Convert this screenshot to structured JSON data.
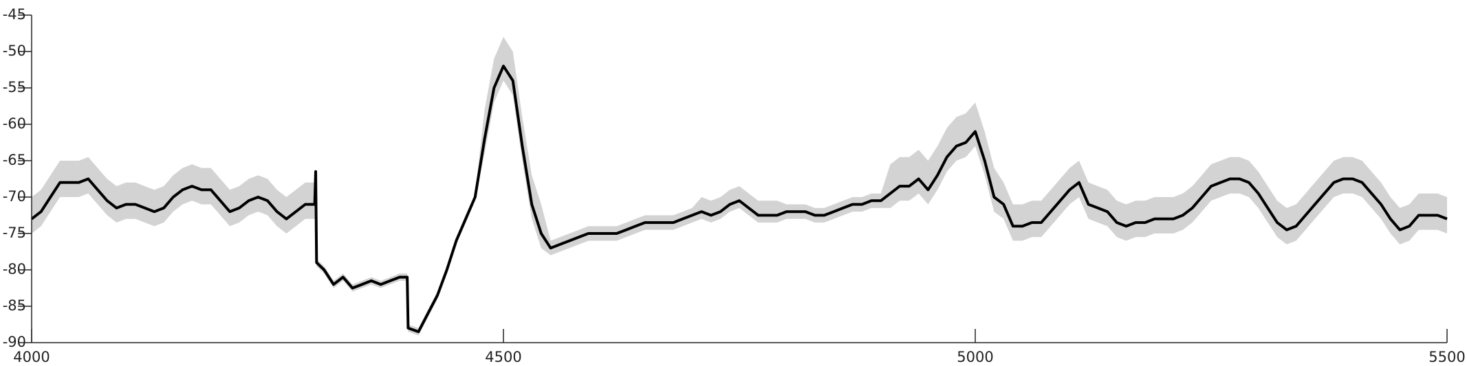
{
  "chart_data": {
    "type": "line",
    "x": [
      4000,
      4010,
      4020,
      4030,
      4040,
      4050,
      4060,
      4070,
      4080,
      4090,
      4100,
      4110,
      4120,
      4130,
      4140,
      4150,
      4160,
      4170,
      4180,
      4190,
      4200,
      4210,
      4220,
      4230,
      4240,
      4250,
      4260,
      4270,
      4280,
      4290,
      4300,
      4301,
      4302,
      4310,
      4320,
      4330,
      4340,
      4350,
      4360,
      4370,
      4380,
      4390,
      4398,
      4399,
      4410,
      4420,
      4430,
      4440,
      4450,
      4460,
      4470,
      4480,
      4490,
      4500,
      4510,
      4520,
      4530,
      4540,
      4550,
      4560,
      4570,
      4580,
      4590,
      4600,
      4610,
      4620,
      4630,
      4640,
      4650,
      4660,
      4670,
      4680,
      4690,
      4700,
      4710,
      4720,
      4730,
      4740,
      4750,
      4760,
      4770,
      4780,
      4790,
      4800,
      4810,
      4820,
      4830,
      4840,
      4850,
      4860,
      4870,
      4880,
      4890,
      4900,
      4910,
      4920,
      4930,
      4940,
      4950,
      4960,
      4970,
      4980,
      4990,
      5000,
      5010,
      5020,
      5030,
      5040,
      5050,
      5060,
      5070,
      5080,
      5090,
      5100,
      5110,
      5120,
      5130,
      5140,
      5150,
      5160,
      5170,
      5180,
      5190,
      5200,
      5210,
      5220,
      5230,
      5240,
      5250,
      5260,
      5270,
      5280,
      5290,
      5300,
      5310,
      5320,
      5330,
      5340,
      5350,
      5360,
      5370,
      5380,
      5390,
      5400,
      5410,
      5420,
      5430,
      5440,
      5450,
      5460,
      5470,
      5480,
      5490,
      5500
    ],
    "band": {
      "color": "#d3d3d3",
      "upper": [
        -70,
        -69,
        -67,
        -65,
        -65,
        -65,
        -64.5,
        -66,
        -67.5,
        -68.5,
        -68,
        -68,
        -68.5,
        -69,
        -68.5,
        -67,
        -66,
        -65.5,
        -66,
        -66,
        -67.5,
        -69,
        -68.5,
        -67.5,
        -67,
        -67.5,
        -69,
        -70,
        -69,
        -68,
        -68,
        -66,
        -78.5,
        -79.5,
        -81.5,
        -80.5,
        -82,
        -81.5,
        -81,
        -81.5,
        -81,
        -80.5,
        -80.5,
        -87.5,
        -88,
        -85.5,
        -83,
        -79.5,
        -75.5,
        -72.5,
        -69.5,
        -58,
        -51,
        -48,
        -50,
        -59,
        -67,
        -71,
        -76,
        -75.5,
        -75,
        -74.5,
        -74,
        -74,
        -74,
        -74,
        -73.5,
        -73,
        -72.5,
        -72.5,
        -72.5,
        -72.5,
        -72,
        -71.5,
        -70,
        -70.5,
        -70,
        -69,
        -68.5,
        -69.5,
        -70.5,
        -70.5,
        -70.5,
        -71,
        -71,
        -71,
        -71.5,
        -71.5,
        -71,
        -70.5,
        -70,
        -70,
        -69.5,
        -69.5,
        -65.5,
        -64.5,
        -64.5,
        -63.5,
        -65,
        -63,
        -60.5,
        -59,
        -58.5,
        -57,
        -61,
        -66,
        -68,
        -71,
        -71,
        -70.5,
        -70.5,
        -69,
        -67.5,
        -66,
        -65,
        -68,
        -68.5,
        -69,
        -70.5,
        -71,
        -70.5,
        -70.5,
        -70,
        -70,
        -70,
        -69.5,
        -68.5,
        -67,
        -65.5,
        -65,
        -64.5,
        -64.5,
        -65,
        -66.5,
        -68.5,
        -70.5,
        -71.5,
        -71,
        -69.5,
        -68,
        -66.5,
        -65,
        -64.5,
        -64.5,
        -65,
        -66.5,
        -68,
        -70,
        -71.5,
        -71,
        -69.5,
        -69.5,
        -69.5,
        -70
      ],
      "lower": [
        -75,
        -74,
        -72,
        -70,
        -70,
        -70,
        -69.5,
        -71,
        -72.5,
        -73.5,
        -73,
        -73,
        -73.5,
        -74,
        -73.5,
        -72,
        -71,
        -70.5,
        -71,
        -71,
        -72.5,
        -74,
        -73.5,
        -72.5,
        -72,
        -72.5,
        -74,
        -75,
        -74,
        -73,
        -73,
        -67,
        -79.5,
        -80.5,
        -82.5,
        -81.5,
        -83,
        -82.5,
        -82,
        -82.5,
        -82,
        -81.5,
        -81.5,
        -88.5,
        -89,
        -86.5,
        -84,
        -80.5,
        -76.5,
        -73.5,
        -70.5,
        -64,
        -57,
        -54,
        -56,
        -65,
        -73,
        -77,
        -78,
        -77.5,
        -77,
        -76.5,
        -76,
        -76,
        -76,
        -76,
        -75.5,
        -75,
        -74.5,
        -74.5,
        -74.5,
        -74.5,
        -74,
        -73.5,
        -73,
        -73.5,
        -73,
        -72,
        -71.5,
        -72.5,
        -73.5,
        -73.5,
        -73.5,
        -73,
        -73,
        -73,
        -73.5,
        -73.5,
        -73,
        -72.5,
        -72,
        -72,
        -71.5,
        -71.5,
        -71.5,
        -70.5,
        -70.5,
        -69.5,
        -71,
        -69,
        -66.5,
        -65,
        -64.5,
        -63,
        -67,
        -72,
        -73,
        -76,
        -76,
        -75.5,
        -75.5,
        -74,
        -72.5,
        -71,
        -70,
        -73,
        -73.5,
        -74,
        -75.5,
        -76,
        -75.5,
        -75.5,
        -75,
        -75,
        -75,
        -74.5,
        -73.5,
        -72,
        -70.5,
        -70,
        -69.5,
        -69.5,
        -70,
        -71.5,
        -73.5,
        -75.5,
        -76.5,
        -76,
        -74.5,
        -73,
        -71.5,
        -70,
        -69.5,
        -69.5,
        -70,
        -71.5,
        -73,
        -75,
        -76.5,
        -76,
        -74.5,
        -74.5,
        -74.5,
        -75
      ]
    },
    "series": [
      {
        "color": "#000000",
        "values": [
          -73,
          -72,
          -70,
          -68,
          -68,
          -68,
          -67.5,
          -69,
          -70.5,
          -71.5,
          -71,
          -71,
          -71.5,
          -72,
          -71.5,
          -70,
          -69,
          -68.5,
          -69,
          -69,
          -70.5,
          -72,
          -71.5,
          -70.5,
          -70,
          -70.5,
          -72,
          -73,
          -72,
          -71,
          -71,
          -66.5,
          -79,
          -80,
          -82,
          -81,
          -82.5,
          -82,
          -81.5,
          -82,
          -81.5,
          -81,
          -81,
          -88,
          -88.5,
          -86,
          -83.5,
          -80,
          -76,
          -73,
          -70,
          -62,
          -55,
          -52,
          -54,
          -63,
          -71,
          -75,
          -77,
          -76.5,
          -76,
          -75.5,
          -75,
          -75,
          -75,
          -75,
          -74.5,
          -74,
          -73.5,
          -73.5,
          -73.5,
          -73.5,
          -73,
          -72.5,
          -72,
          -72.5,
          -72,
          -71,
          -70.5,
          -71.5,
          -72.5,
          -72.5,
          -72.5,
          -72,
          -72,
          -72,
          -72.5,
          -72.5,
          -72,
          -71.5,
          -71,
          -71,
          -70.5,
          -70.5,
          -69.5,
          -68.5,
          -68.5,
          -67.5,
          -69,
          -67,
          -64.5,
          -63,
          -62.5,
          -61,
          -65,
          -70,
          -71,
          -74,
          -74,
          -73.5,
          -73.5,
          -72,
          -70.5,
          -69,
          -68,
          -71,
          -71.5,
          -72,
          -73.5,
          -74,
          -73.5,
          -73.5,
          -73,
          -73,
          -73,
          -72.5,
          -71.5,
          -70,
          -68.5,
          -68,
          -67.5,
          -67.5,
          -68,
          -69.5,
          -71.5,
          -73.5,
          -74.5,
          -74,
          -72.5,
          -71,
          -69.5,
          -68,
          -67.5,
          -67.5,
          -68,
          -69.5,
          -71,
          -73,
          -74.5,
          -74,
          -72.5,
          -72.5,
          -72.5,
          -73
        ]
      }
    ],
    "xlim": [
      4000,
      5500
    ],
    "ylim": [
      -90,
      -45
    ],
    "xticks": [
      4000,
      4500,
      5000,
      5500
    ],
    "yticks": [
      -90,
      -85,
      -80,
      -75,
      -70,
      -65,
      -60,
      -55,
      -50,
      -45
    ]
  }
}
